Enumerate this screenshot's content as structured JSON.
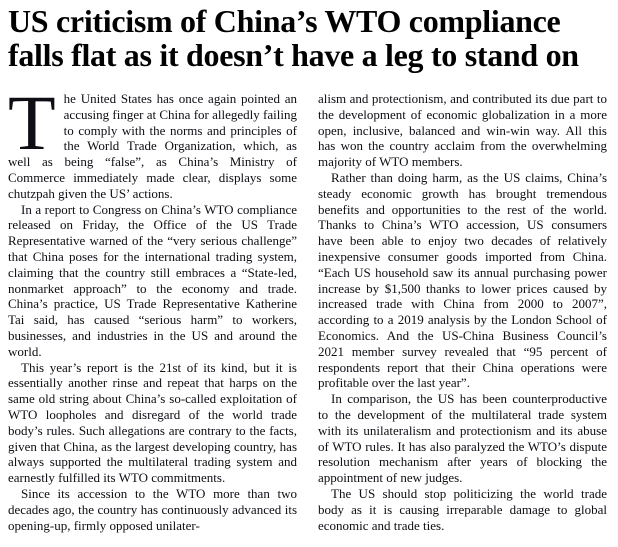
{
  "article": {
    "headline": "US criticism of China’s WTO compliance falls flat as it doesn’t have a leg to stand on",
    "left_column": [
      {
        "drop_cap": "T",
        "text": "he United States has once again pointed an accusing finger at China for allegedly failing to comply with the norms and principles of the World Trade Organization, which, as well as being “false”, as China’s Ministry of Commerce immediately made clear, displays some chutzpah given the US’ actions."
      },
      {
        "text": "In a report to Congress on China’s WTO compliance released on Friday, the Office of the US Trade Representative warned of the “very serious challenge” that China poses for the international trading system, claiming that the country still embraces a “State-led, nonmarket approach” to the economy and trade. China’s practice, US Trade Representative Katherine Tai said, has caused “serious harm” to workers, businesses, and industries in the US and around the world."
      },
      {
        "text": "This year’s report is the 21st of its kind, but it is essentially another rinse and repeat that harps on the same old string about China’s so-called exploitation of WTO loopholes and disregard of the world trade body’s rules. Such allegations are contrary to the facts, given that China, as the largest developing country, has always supported the multilateral trading system and earnestly fulfilled its WTO commitments."
      },
      {
        "text": "Since its accession to the WTO more than two decades ago, the country has continuously advanced its opening-up, firmly opposed unilater-"
      }
    ],
    "right_column": [
      {
        "text": "alism and protectionism, and contributed its due part to the development of economic globalization in a more open, inclusive, balanced and win-win way. All this has won the country acclaim from the overwhelming majority of WTO members."
      },
      {
        "text": "Rather than doing harm, as the US claims, China’s steady economic growth has brought tremendous benefits and opportunities to the rest of the world. Thanks to China’s WTO accession, US consumers have been able to enjoy two decades of relatively inexpensive consumer goods imported from China. “Each US household saw its annual purchasing power increase by $1,500 thanks to lower prices caused by increased trade with China from 2000 to 2007”, according to a 2019 analysis by the London School of Economics. And the US-China Business Council’s 2021 member survey revealed that “95 percent of respondents report that their China operations were profitable over the last year”."
      },
      {
        "text": "In comparison, the US has been counterproductive to the development of the multilateral trade system with its unilateralism and protectionism and its abuse of WTO rules. It has also paralyzed the WTO’s dispute resolution mechanism after years of blocking the appointment of new judges."
      },
      {
        "text": "The US should stop politicizing the world trade body as it is causing irreparable damage to global economic and trade ties."
      }
    ]
  },
  "colors": {
    "background": "#ffffff",
    "headline_text": "#000000",
    "body_text": "#0d0d14"
  }
}
